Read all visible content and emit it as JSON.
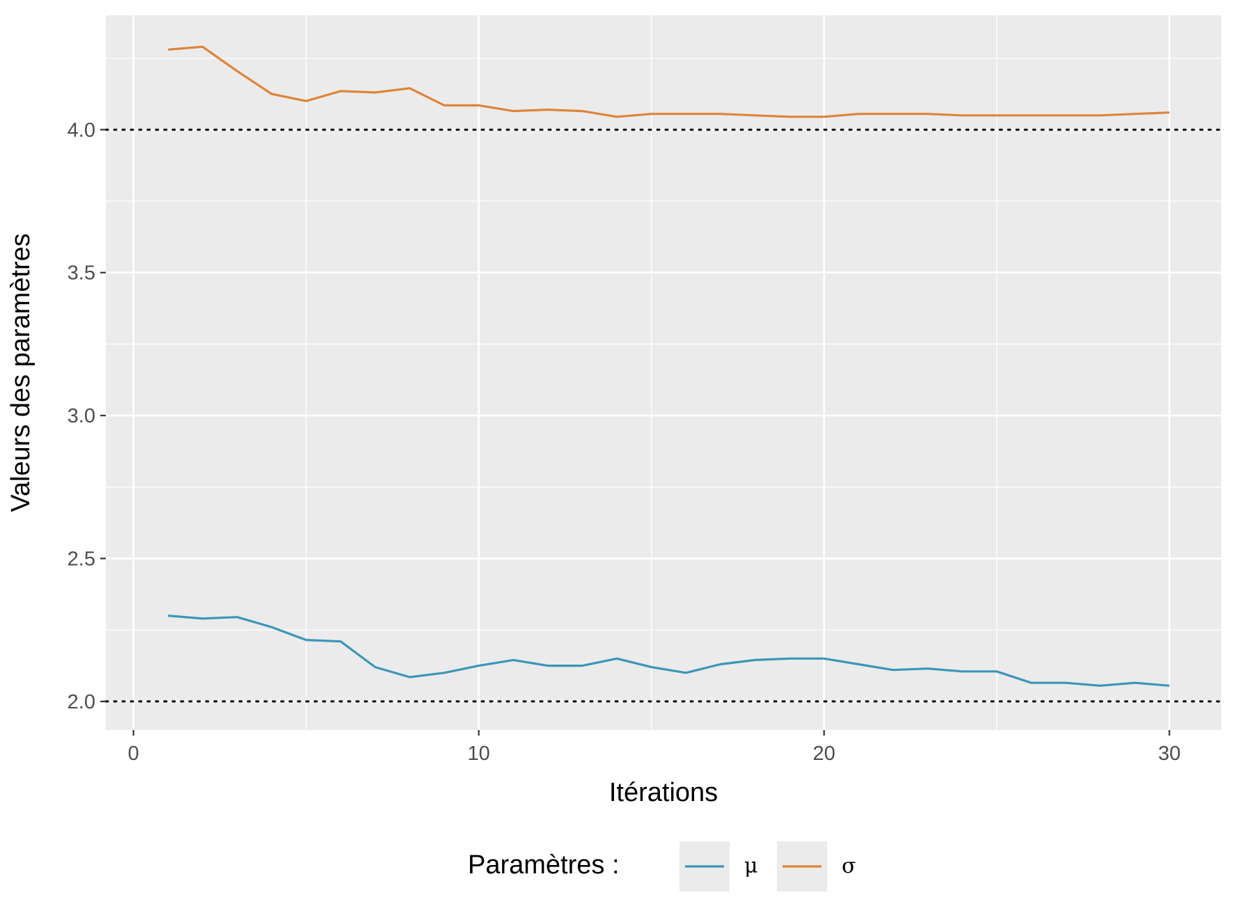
{
  "chart_data": {
    "type": "line",
    "xlabel": "Itérations",
    "ylabel": "Valeurs des paramètres",
    "xlim": [
      -0.8,
      31.5
    ],
    "ylim": [
      1.9,
      4.4
    ],
    "x_ticks": [
      0,
      10,
      20,
      30
    ],
    "x_tick_labels": [
      "0",
      "10",
      "20",
      "30"
    ],
    "y_ticks": [
      2.0,
      2.5,
      3.0,
      3.5,
      4.0
    ],
    "y_tick_labels": [
      "2.0",
      "2.5",
      "3.0",
      "3.5",
      "4.0"
    ],
    "x_minor_ticks": [
      5,
      15,
      25
    ],
    "y_minor_ticks": [
      2.25,
      2.75,
      3.25,
      3.75,
      4.25
    ],
    "reference_lines": [
      2.0,
      4.0
    ],
    "grid": true,
    "legend_position": "bottom",
    "legend_title": "Paramètres :",
    "x": [
      1,
      2,
      3,
      4,
      5,
      6,
      7,
      8,
      9,
      10,
      11,
      12,
      13,
      14,
      15,
      16,
      17,
      18,
      19,
      20,
      21,
      22,
      23,
      24,
      25,
      26,
      27,
      28,
      29,
      30
    ],
    "series": [
      {
        "name": "μ",
        "color": "#3a96b7",
        "values": [
          2.3,
          2.29,
          2.295,
          2.26,
          2.215,
          2.21,
          2.12,
          2.085,
          2.1,
          2.125,
          2.145,
          2.125,
          2.125,
          2.15,
          2.12,
          2.1,
          2.13,
          2.145,
          2.15,
          2.15,
          2.13,
          2.11,
          2.115,
          2.105,
          2.105,
          2.065,
          2.065,
          2.055,
          2.065,
          2.055
        ]
      },
      {
        "name": "σ",
        "color": "#dd8438",
        "values": [
          4.28,
          4.29,
          4.205,
          4.125,
          4.1,
          4.135,
          4.13,
          4.145,
          4.085,
          4.085,
          4.065,
          4.07,
          4.065,
          4.045,
          4.055,
          4.055,
          4.055,
          4.05,
          4.045,
          4.045,
          4.055,
          4.055,
          4.055,
          4.05,
          4.05,
          4.05,
          4.05,
          4.05,
          4.055,
          4.06
        ]
      }
    ]
  }
}
